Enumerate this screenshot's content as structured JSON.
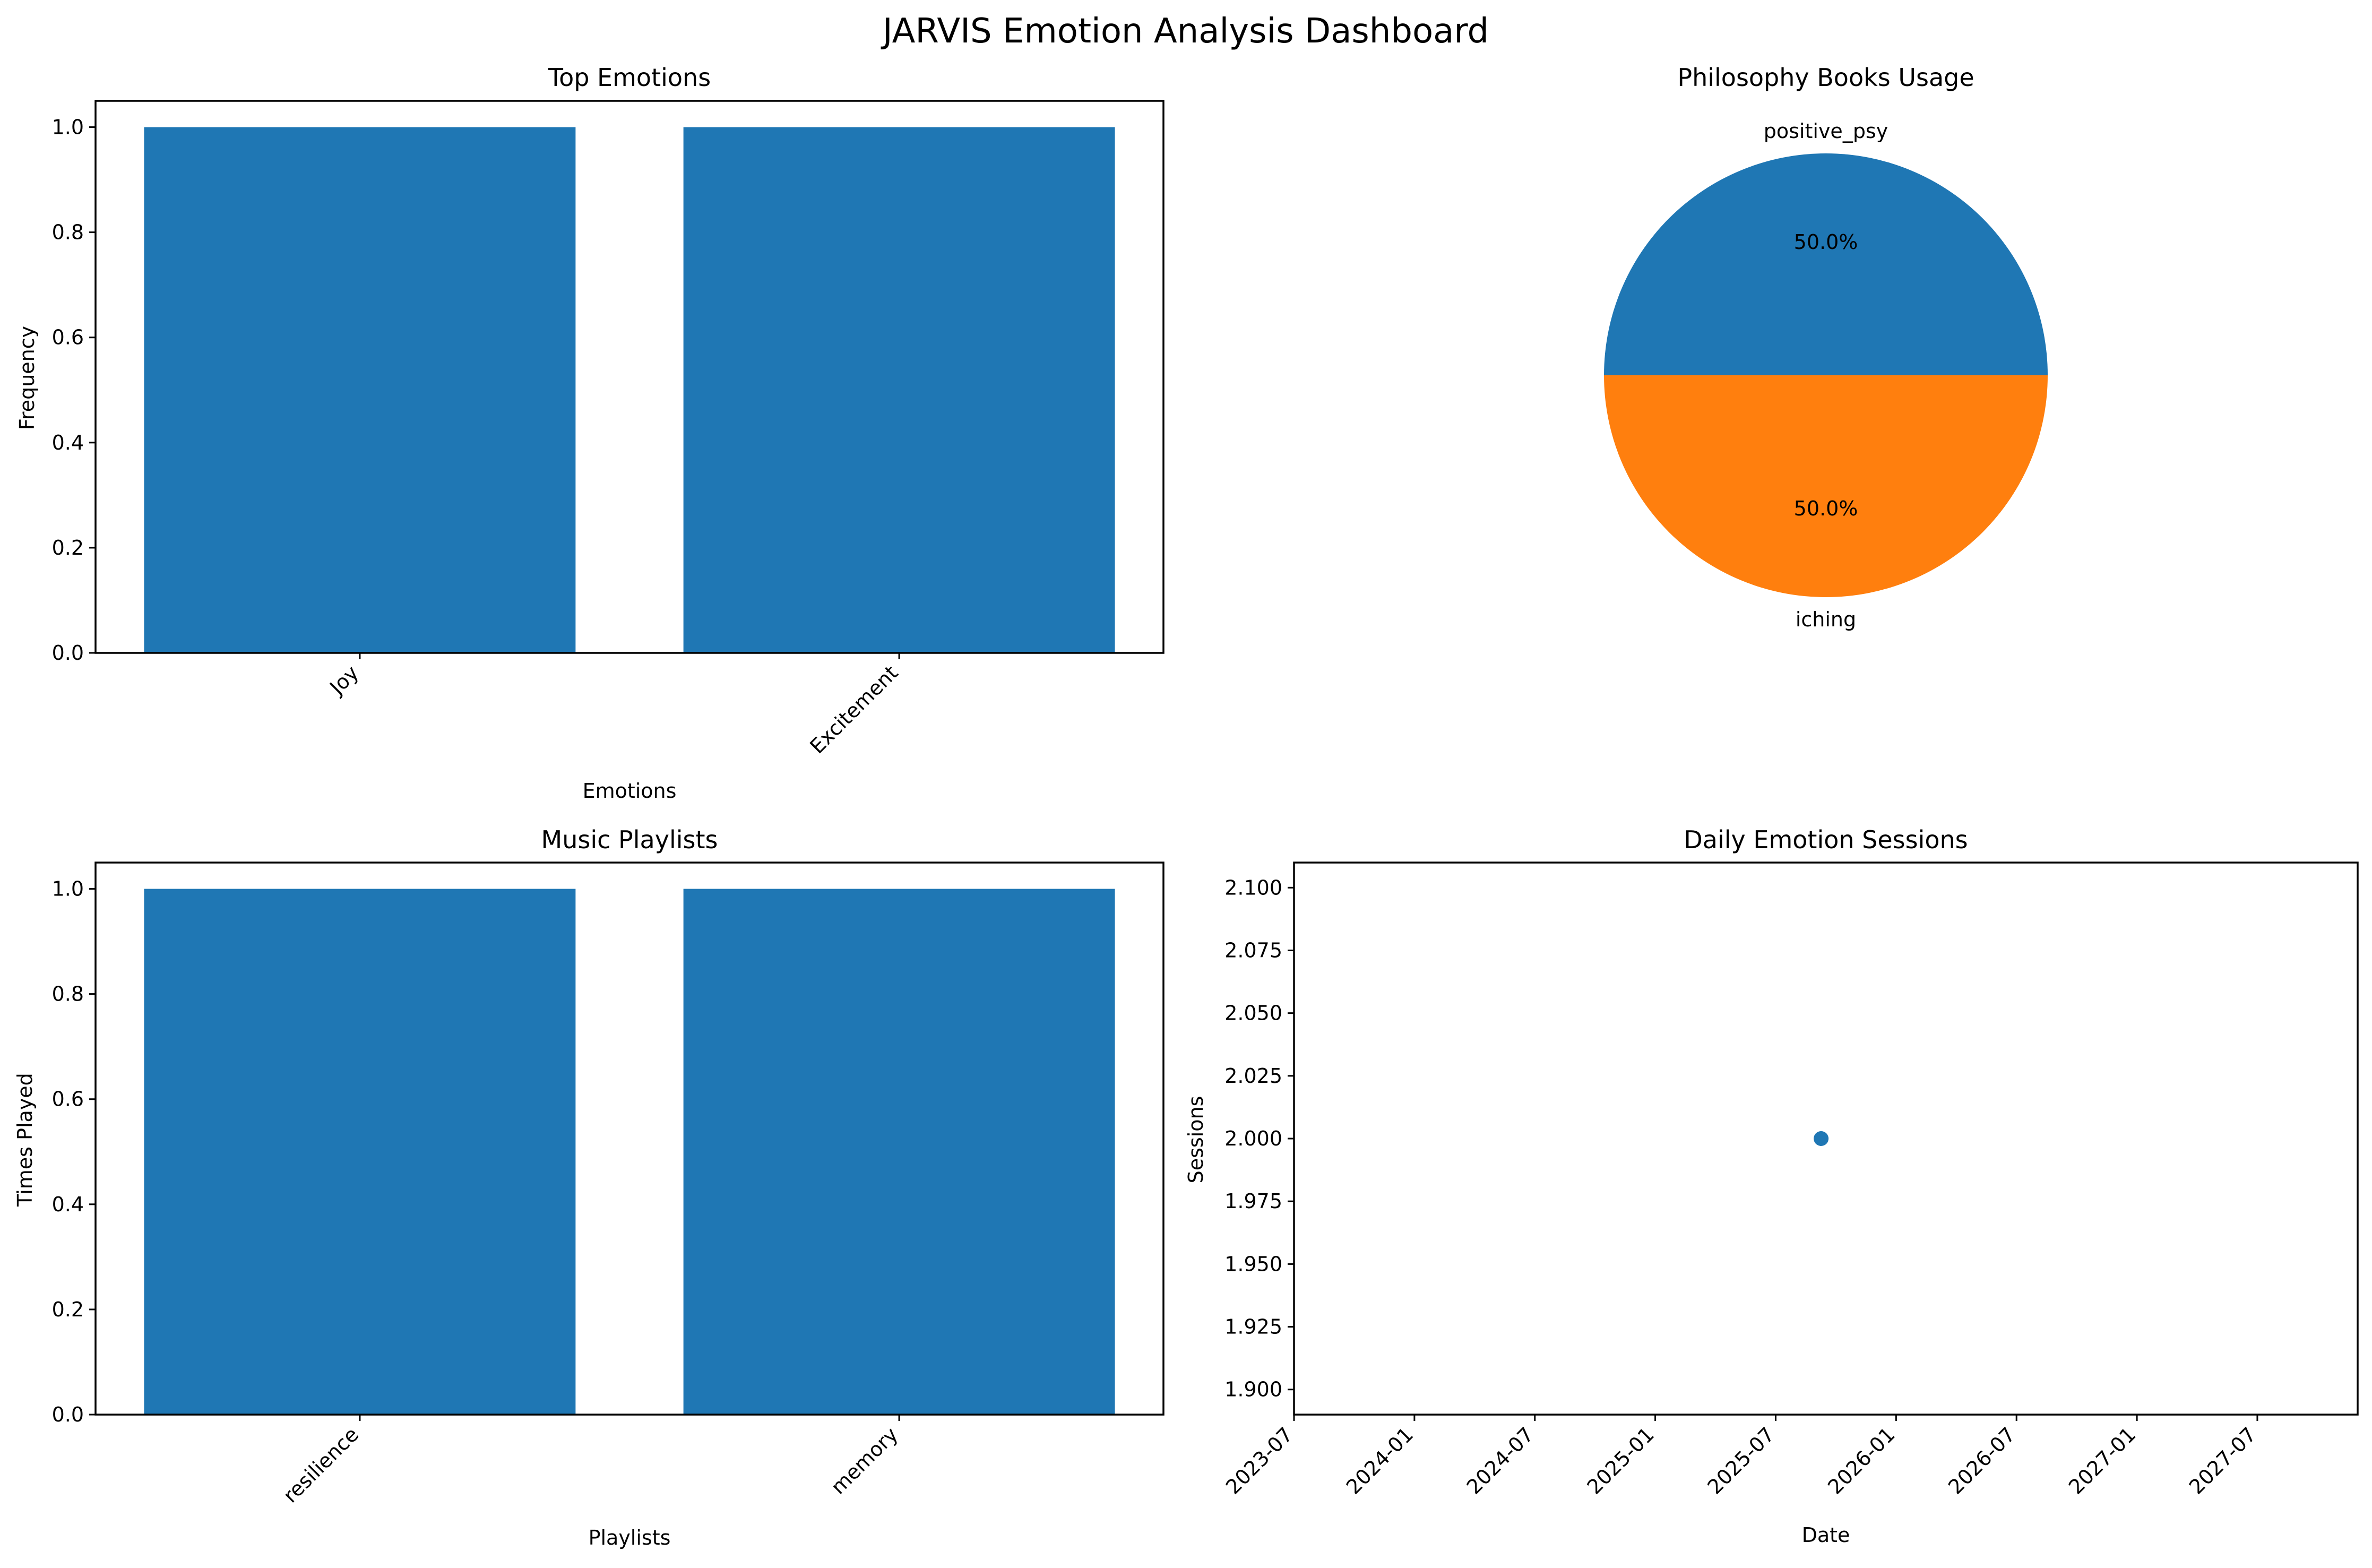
{
  "suptitle": "JARVIS Emotion Analysis Dashboard",
  "colors": {
    "blue": "#1f77b4",
    "orange": "#ff7f0e",
    "axis": "#000000"
  },
  "chart_data": [
    {
      "type": "bar",
      "title": "Top Emotions",
      "xlabel": "Emotions",
      "ylabel": "Frequency",
      "categories": [
        "Joy",
        "Excitement"
      ],
      "values": [
        1,
        1
      ],
      "ylim": [
        0,
        1.05
      ],
      "yticks": [
        "0.0",
        "0.2",
        "0.4",
        "0.6",
        "0.8",
        "1.0"
      ],
      "grid": false
    },
    {
      "type": "pie",
      "title": "Philosophy Books Usage",
      "labels": [
        "positive_psy",
        "iching"
      ],
      "values": [
        50.0,
        50.0
      ],
      "pct_labels": [
        "50.0%",
        "50.0%"
      ],
      "colors": [
        "#1f77b4",
        "#ff7f0e"
      ]
    },
    {
      "type": "bar",
      "title": "Music Playlists",
      "xlabel": "Playlists",
      "ylabel": "Times Played",
      "categories": [
        "resilience",
        "memory"
      ],
      "values": [
        1,
        1
      ],
      "ylim": [
        0,
        1.05
      ],
      "yticks": [
        "0.0",
        "0.2",
        "0.4",
        "0.6",
        "0.8",
        "1.0"
      ],
      "grid": false
    },
    {
      "type": "scatter",
      "title": "Daily Emotion Sessions",
      "xlabel": "Date",
      "ylabel": "Sessions",
      "points": [
        {
          "x": "2025-09",
          "y": 2
        }
      ],
      "xlim": [
        "2023-07",
        "2027-12"
      ],
      "xticks": [
        "2023-07",
        "2024-01",
        "2024-07",
        "2025-01",
        "2025-07",
        "2026-01",
        "2026-07",
        "2027-01",
        "2027-07"
      ],
      "ylim": [
        1.89,
        2.11
      ],
      "yticks": [
        "1.900",
        "1.925",
        "1.950",
        "1.975",
        "2.000",
        "2.025",
        "2.050",
        "2.075",
        "2.100"
      ],
      "grid": false
    }
  ]
}
